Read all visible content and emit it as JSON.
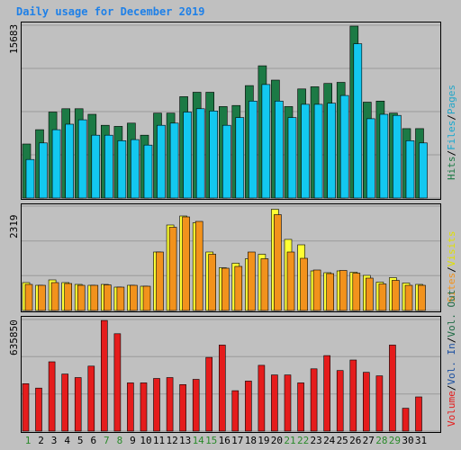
{
  "title": "Daily usage for December 2019",
  "colors": {
    "hits": "#1C7A45",
    "files": "#13C8F0",
    "pages": "#22A6C8",
    "visits": "#FFFF33",
    "sites": "#F2921C",
    "kbytes_in": "#1A4FA0",
    "kbytes_out": "#1E6A44",
    "volume": "#E51C1C",
    "title": "#1E80E8",
    "weekend_tick": "#2A8A2A"
  },
  "right_legends": {
    "top": [
      {
        "text": "Hits",
        "color": "#1C7A45"
      },
      {
        "text": "/",
        "color": "#000000"
      },
      {
        "text": "Files",
        "color": "#13A8D0"
      },
      {
        "text": "/",
        "color": "#000000"
      },
      {
        "text": "Pages",
        "color": "#22A6C8"
      }
    ],
    "mid": [
      {
        "text": "Sites",
        "color": "#F2921C"
      },
      {
        "text": "/",
        "color": "#000000"
      },
      {
        "text": "Visits",
        "color": "#E0E000"
      }
    ],
    "bottom": [
      {
        "text": "Volume",
        "color": "#E51C1C"
      },
      {
        "text": "/",
        "color": "#000000"
      },
      {
        "text": "Vol. In",
        "color": "#1A4FA0"
      },
      {
        "text": "/",
        "color": "#000000"
      },
      {
        "text": "Vol. Out",
        "color": "#1E6A44"
      }
    ]
  },
  "chart_data": [
    {
      "type": "bar",
      "panel": "hits-files",
      "ymax_label": "15683",
      "ylim": [
        0,
        15683
      ],
      "categories": [
        "1",
        "2",
        "3",
        "4",
        "5",
        "6",
        "7",
        "8",
        "9",
        "10",
        "11",
        "12",
        "13",
        "14",
        "15",
        "16",
        "17",
        "18",
        "19",
        "20",
        "21",
        "22",
        "23",
        "24",
        "25",
        "26",
        "27",
        "28",
        "29",
        "30",
        "31"
      ],
      "series": [
        {
          "name": "Hits",
          "values": [
            4900,
            6200,
            7800,
            8100,
            8100,
            7600,
            6600,
            6500,
            6800,
            5700,
            7700,
            7700,
            9200,
            9600,
            9600,
            8300,
            8400,
            10200,
            12000,
            10700,
            8300,
            9900,
            10100,
            10400,
            10500,
            15600,
            8700,
            8800,
            7700,
            6300,
            6300
          ]
        },
        {
          "name": "Files",
          "values": [
            3500,
            5000,
            6200,
            6700,
            7100,
            5700,
            5700,
            5200,
            5300,
            4800,
            6600,
            6800,
            7800,
            8100,
            7900,
            6600,
            7300,
            8800,
            10300,
            8800,
            7300,
            8500,
            8500,
            8600,
            9300,
            14000,
            7200,
            7600,
            7500,
            5200,
            5000
          ]
        }
      ]
    },
    {
      "type": "bar",
      "panel": "sites-visits",
      "ymax_label": "2319",
      "ylim": [
        0,
        2319
      ],
      "categories": [
        "1",
        "2",
        "3",
        "4",
        "5",
        "6",
        "7",
        "8",
        "9",
        "10",
        "11",
        "12",
        "13",
        "14",
        "15",
        "16",
        "17",
        "18",
        "19",
        "20",
        "21",
        "22",
        "23",
        "24",
        "25",
        "26",
        "27",
        "28",
        "29",
        "30",
        "31"
      ],
      "series": [
        {
          "name": "Visits",
          "values": [
            620,
            560,
            680,
            620,
            580,
            560,
            580,
            520,
            560,
            540,
            1300,
            1900,
            2100,
            1950,
            1300,
            950,
            1050,
            1150,
            1250,
            2250,
            1580,
            1460,
            880,
            840,
            880,
            850,
            780,
            630,
            730,
            610,
            580
          ]
        },
        {
          "name": "Sites",
          "values": [
            580,
            560,
            620,
            600,
            560,
            560,
            570,
            520,
            560,
            540,
            1300,
            1850,
            2080,
            1980,
            1250,
            940,
            980,
            1300,
            1150,
            2130,
            1300,
            1160,
            900,
            820,
            890,
            830,
            720,
            590,
            670,
            560,
            560
          ]
        }
      ]
    },
    {
      "type": "bar",
      "panel": "volume",
      "ymax_label": "635850",
      "ylim": [
        0,
        635850
      ],
      "categories": [
        "1",
        "2",
        "3",
        "4",
        "5",
        "6",
        "7",
        "8",
        "9",
        "10",
        "11",
        "12",
        "13",
        "14",
        "15",
        "16",
        "17",
        "18",
        "19",
        "20",
        "21",
        "22",
        "23",
        "24",
        "25",
        "26",
        "27",
        "28",
        "29",
        "30",
        "31"
      ],
      "series": [
        {
          "name": "Volume",
          "values": [
            270000,
            245000,
            395000,
            325000,
            305000,
            370000,
            630000,
            555000,
            275000,
            275000,
            300000,
            305000,
            265000,
            295000,
            420000,
            490000,
            230000,
            285000,
            375000,
            320000,
            320000,
            275000,
            355000,
            430000,
            345000,
            405000,
            335000,
            315000,
            490000,
            130000,
            195000
          ]
        }
      ]
    }
  ],
  "weekend_days": [
    1,
    7,
    8,
    14,
    15,
    21,
    22,
    28,
    29
  ]
}
